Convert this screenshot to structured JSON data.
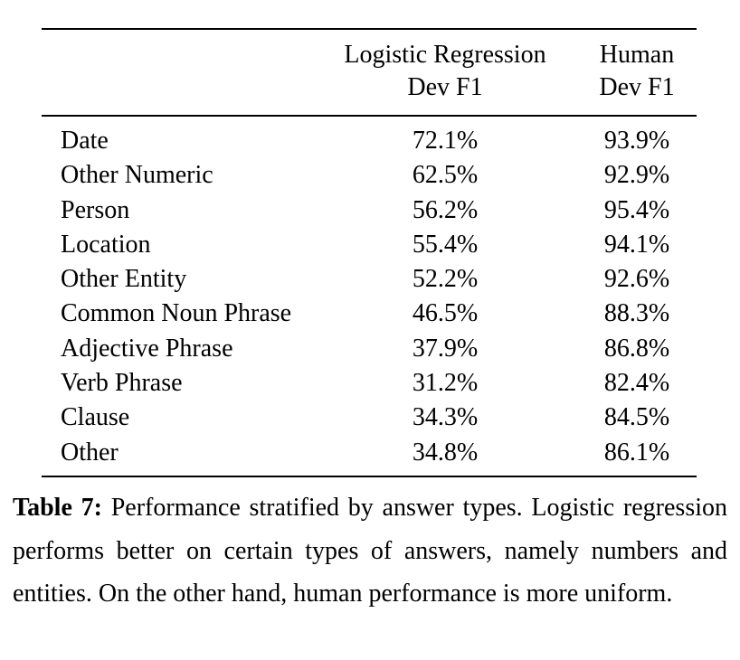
{
  "table": {
    "headers": {
      "logistic": [
        "Logistic Regression",
        "Dev F1"
      ],
      "human": [
        "Human",
        "Dev F1"
      ]
    },
    "rows": [
      {
        "type": "Date",
        "logistic": "72.1%",
        "human": "93.9%"
      },
      {
        "type": "Other Numeric",
        "logistic": "62.5%",
        "human": "92.9%"
      },
      {
        "type": "Person",
        "logistic": "56.2%",
        "human": "95.4%"
      },
      {
        "type": "Location",
        "logistic": "55.4%",
        "human": "94.1%"
      },
      {
        "type": "Other Entity",
        "logistic": "52.2%",
        "human": "92.6%"
      },
      {
        "type": "Common Noun Phrase",
        "logistic": "46.5%",
        "human": "88.3%"
      },
      {
        "type": "Adjective Phrase",
        "logistic": "37.9%",
        "human": "86.8%"
      },
      {
        "type": "Verb Phrase",
        "logistic": "31.2%",
        "human": "82.4%"
      },
      {
        "type": "Clause",
        "logistic": "34.3%",
        "human": "84.5%"
      },
      {
        "type": "Other",
        "logistic": "34.8%",
        "human": "86.1%"
      }
    ]
  },
  "caption": {
    "label": "Table 7:",
    "text": "Performance stratified by answer types. Logistic regression performs better on certain types of answers, namely numbers and entities. On the other hand, human performance is more uniform."
  }
}
